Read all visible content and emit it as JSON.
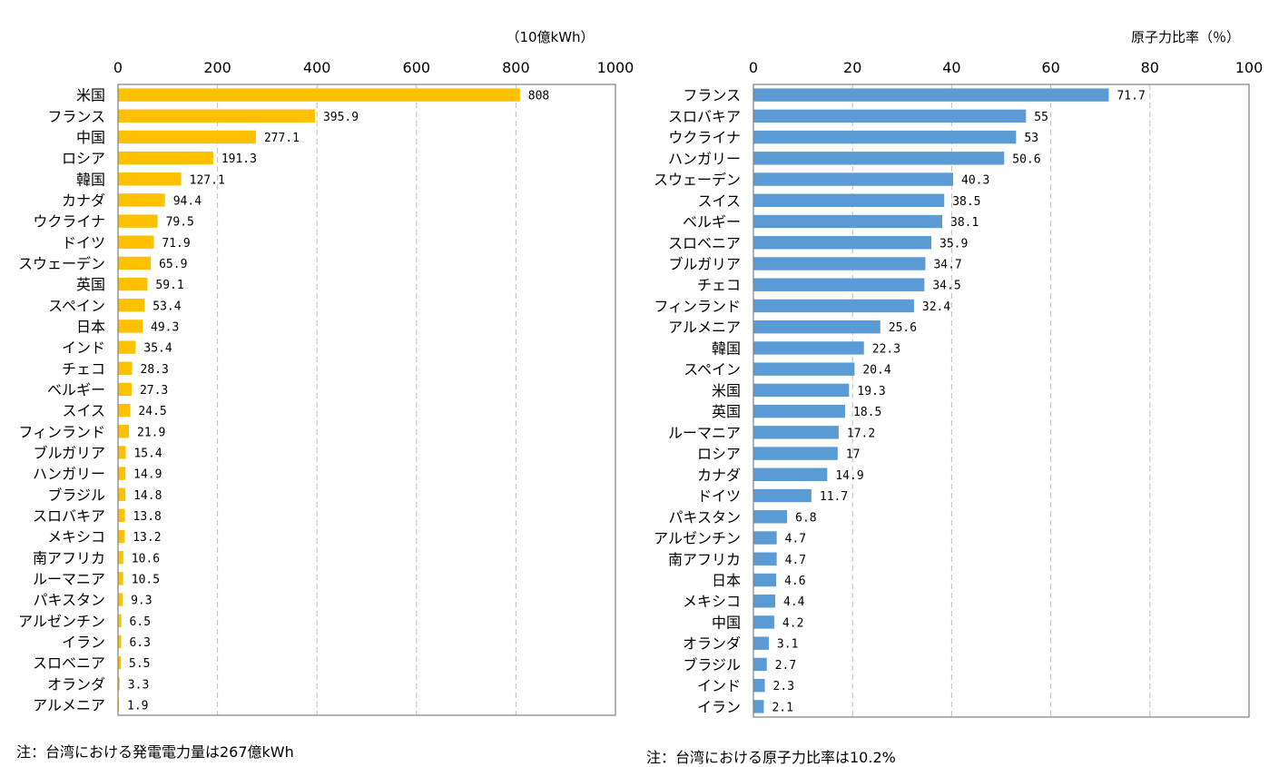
{
  "chart_data": [
    {
      "type": "bar",
      "orientation": "horizontal",
      "unit_label": "（10億kWh）",
      "xlim": [
        0,
        1000
      ],
      "ticks": [
        0,
        200,
        400,
        600,
        800,
        1000
      ],
      "grid": true,
      "bar_color": "#FFC000",
      "categories": [
        "米国",
        "フランス",
        "中国",
        "ロシア",
        "韓国",
        "カナダ",
        "ウクライナ",
        "ドイツ",
        "スウェーデン",
        "英国",
        "スペイン",
        "日本",
        "インド",
        "チェコ",
        "ベルギー",
        "スイス",
        "フィンランド",
        "ブルガリア",
        "ハンガリー",
        "ブラジル",
        "スロバキア",
        "メキシコ",
        "南アフリカ",
        "ルーマニア",
        "パキスタン",
        "アルゼンチン",
        "イラン",
        "スロベニア",
        "オランダ",
        "アルメニア"
      ],
      "values": [
        808,
        395.9,
        277.1,
        191.3,
        127.1,
        94.4,
        79.5,
        71.9,
        65.9,
        59.1,
        53.4,
        49.3,
        35.4,
        28.3,
        27.3,
        24.5,
        21.9,
        15.4,
        14.9,
        14.8,
        13.8,
        13.2,
        10.6,
        10.5,
        9.3,
        6.5,
        6.3,
        5.5,
        3.3,
        1.9
      ],
      "labels": [
        "808",
        "395.9",
        "277.1",
        "191.3",
        "127.1",
        "94.4",
        "79.5",
        "71.9",
        "65.9",
        "59.1",
        "53.4",
        "49.3",
        "35.4",
        "28.3",
        "27.3",
        "24.5",
        "21.9",
        "15.4",
        "14.9",
        "14.8",
        "13.8",
        "13.2",
        "10.6",
        "10.5",
        "9.3",
        "6.5",
        "6.3",
        "5.5",
        "3.3",
        "1.9"
      ],
      "note": "注：台湾における発電電力量は267億kWh"
    },
    {
      "type": "bar",
      "orientation": "horizontal",
      "unit_label": "原子力比率（％）",
      "xlim": [
        0,
        100
      ],
      "ticks": [
        0,
        20,
        40,
        60,
        80,
        100
      ],
      "grid": true,
      "bar_color": "#5B9BD5",
      "categories": [
        "フランス",
        "スロバキア",
        "ウクライナ",
        "ハンガリー",
        "スウェーデン",
        "スイス",
        "ベルギー",
        "スロベニア",
        "ブルガリア",
        "チェコ",
        "フィンランド",
        "アルメニア",
        "韓国",
        "スペイン",
        "米国",
        "英国",
        "ルーマニア",
        "ロシア",
        "カナダ",
        "ドイツ",
        "パキスタン",
        "アルゼンチン",
        "南アフリカ",
        "日本",
        "メキシコ",
        "中国",
        "オランダ",
        "ブラジル",
        "インド",
        "イラン"
      ],
      "values": [
        71.7,
        55,
        53,
        50.6,
        40.3,
        38.5,
        38.1,
        35.9,
        34.7,
        34.5,
        32.4,
        25.6,
        22.3,
        20.4,
        19.3,
        18.5,
        17.2,
        17,
        14.9,
        11.7,
        6.8,
        4.7,
        4.7,
        4.6,
        4.4,
        4.2,
        3.1,
        2.7,
        2.3,
        2.1
      ],
      "labels": [
        "71.7",
        "55",
        "53",
        "50.6",
        "40.3",
        "38.5",
        "38.1",
        "35.9",
        "34.7",
        "34.5",
        "32.4",
        "25.6",
        "22.3",
        "20.4",
        "19.3",
        "18.5",
        "17.2",
        "17",
        "14.9",
        "11.7",
        "6.8",
        "4.7",
        "4.7",
        "4.6",
        "4.4",
        "4.2",
        "3.1",
        "2.7",
        "2.3",
        "2.1"
      ],
      "note": "注：台湾における原子力比率は10.2%"
    }
  ]
}
